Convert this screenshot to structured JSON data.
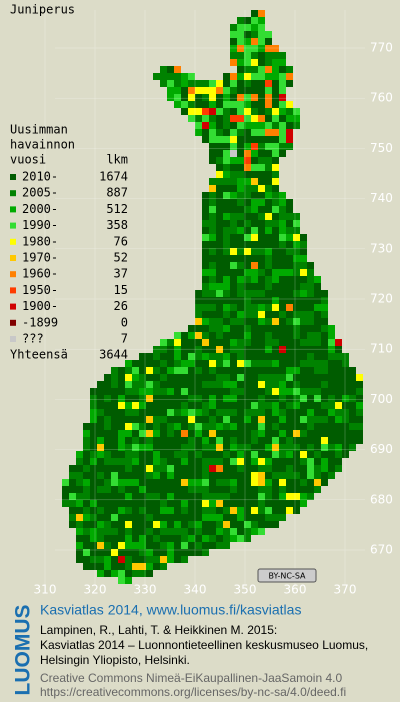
{
  "title": "Juniperus",
  "legend": {
    "heading": [
      "Uusimman",
      "havainnon"
    ],
    "col_headers": [
      "vuosi",
      "lkm"
    ],
    "items": [
      {
        "label": "2010-",
        "count": 1674,
        "color": "#005c00"
      },
      {
        "label": "2005-",
        "count": 887,
        "color": "#008200"
      },
      {
        "label": "2000-",
        "count": 512,
        "color": "#00aa00"
      },
      {
        "label": "1990-",
        "count": 358,
        "color": "#33dd33"
      },
      {
        "label": "1980-",
        "count": 76,
        "color": "#ffff00"
      },
      {
        "label": "1970-",
        "count": 52,
        "color": "#ffc800"
      },
      {
        "label": "1960-",
        "count": 37,
        "color": "#ff8000"
      },
      {
        "label": "1950-",
        "count": 15,
        "color": "#ff3c00"
      },
      {
        "label": "1900-",
        "count": 26,
        "color": "#d00000"
      },
      {
        "label": "-1899",
        "count": 0,
        "color": "#800000"
      },
      {
        "label": "???",
        "count": 7,
        "color": "#c8c8c8"
      }
    ],
    "total_label": "Yhteensä",
    "total": 3644
  },
  "axes": {
    "y_labels": [
      "770",
      "760",
      "750",
      "740",
      "730",
      "720",
      "710",
      "700",
      "690",
      "680",
      "670"
    ],
    "x_labels": [
      "310",
      "320",
      "330",
      "340",
      "350",
      "360",
      "370"
    ]
  },
  "license_badge": "BY-NC-SA",
  "footer": {
    "brand": "LUOMUS",
    "title": "Kasviatlas 2014, www.luomus.fi/kasviatlas",
    "citation": [
      "Lampinen, R., Lahti, T. & Heikkinen M. 2015:",
      "Kasviatlas 2014 – Luonnontieteellinen keskusmuseo Luomus,",
      "Helsingin Yliopisto, Helsinki."
    ],
    "license": [
      "Creative Commons Nimeä-EiKaupallinen-JaaSamoin 4.0",
      "https://creativecommons.org/licenses/by-nc-sa/4.0/deed.fi"
    ]
  }
}
